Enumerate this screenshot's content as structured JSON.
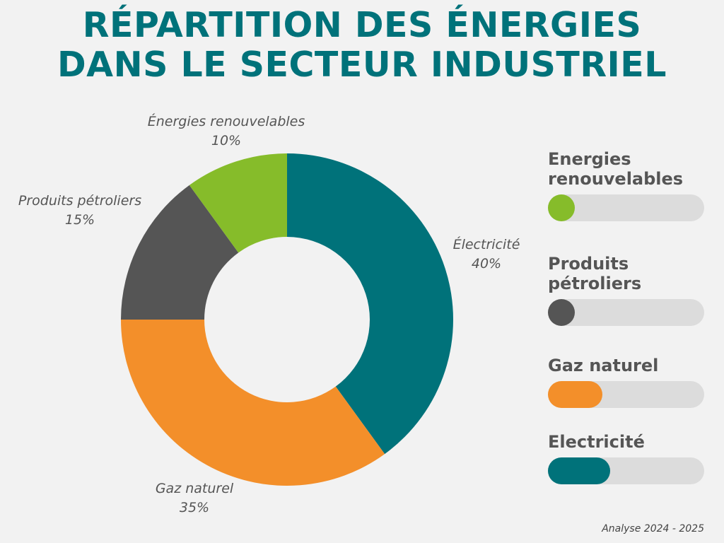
{
  "chart_data": {
    "type": "donut",
    "title": "RÉPARTITION DES ÉNERGIES DANS LE SECTEUR INDUSTRIEL",
    "categories": [
      "Électricité",
      "Gaz naturel",
      "Produits pétroliers",
      "Énergies renouvelables"
    ],
    "values": [
      40,
      35,
      15,
      10
    ],
    "value_labels": [
      "40%",
      "35%",
      "15%",
      "10%"
    ],
    "colors": [
      "#00727a",
      "#f38f2a",
      "#555555",
      "#86bc2a"
    ],
    "legend_labels": [
      "Electricité",
      "Gaz naturel",
      "Produits pétroliers",
      "Energies renouvelables"
    ],
    "footnote": "Analyse 2024 - 2025"
  }
}
